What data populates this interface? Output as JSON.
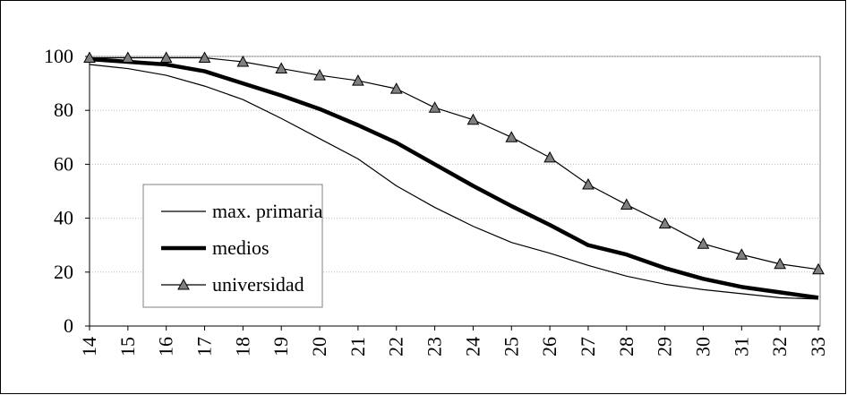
{
  "chart_data": {
    "type": "line",
    "x": [
      14,
      15,
      16,
      17,
      18,
      19,
      20,
      21,
      22,
      23,
      24,
      25,
      26,
      27,
      28,
      29,
      30,
      31,
      32,
      33
    ],
    "xlim": [
      14,
      33
    ],
    "xticks": [
      14,
      15,
      16,
      17,
      18,
      19,
      20,
      21,
      22,
      23,
      24,
      25,
      26,
      27,
      28,
      29,
      30,
      31,
      32,
      33
    ],
    "ylim": [
      0,
      100
    ],
    "yticks": [
      0,
      20,
      40,
      60,
      80,
      100
    ],
    "grid": true,
    "legend": "left",
    "series": [
      {
        "name": "max. primaria",
        "color": "#000000",
        "line_width": 1.2,
        "marker": "none",
        "values": [
          97,
          95.5,
          93,
          89,
          84,
          77,
          69.5,
          62,
          52,
          44,
          37,
          31,
          27,
          22.5,
          18.5,
          15.5,
          13.5,
          12,
          10.5,
          10
        ]
      },
      {
        "name": "medios",
        "color": "#000000",
        "line_width": 4.5,
        "marker": "none",
        "values": [
          99,
          98,
          97,
          94.5,
          90,
          85.5,
          80.5,
          74.5,
          68,
          60,
          52,
          44.5,
          37.5,
          30,
          26.5,
          21.5,
          17.5,
          14.5,
          12.5,
          10.5
        ]
      },
      {
        "name": "universidad",
        "color": "#000000",
        "line_width": 1.2,
        "marker": "triangle",
        "values": [
          99.5,
          99.5,
          99.5,
          99.5,
          98,
          95.5,
          93,
          91,
          88,
          81,
          76.5,
          70,
          62.5,
          52.5,
          45,
          38,
          30.5,
          26.5,
          23,
          21
        ]
      }
    ]
  }
}
